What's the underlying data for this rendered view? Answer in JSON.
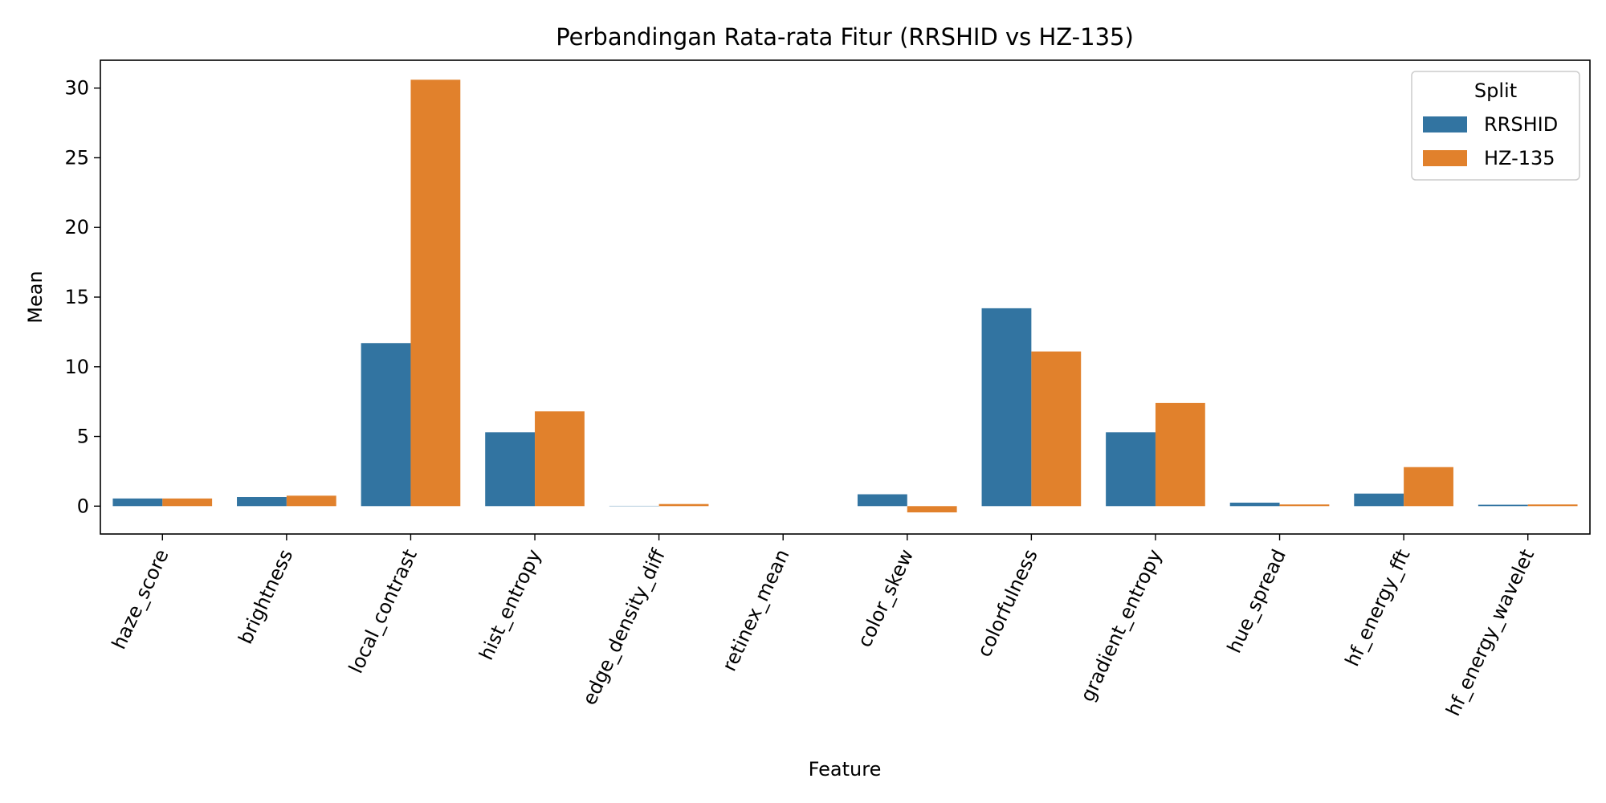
{
  "chart_data": {
    "type": "bar",
    "title": "Perbandingan Rata-rata Fitur (RRSHID vs HZ-135)",
    "xlabel": "Feature",
    "ylabel": "Mean",
    "ylim": [
      -2,
      32
    ],
    "yticks": [
      0,
      5,
      10,
      15,
      20,
      25,
      30
    ],
    "grid": false,
    "legend": {
      "title": "Split",
      "placement": "top-right"
    },
    "categories": [
      "haze_score",
      "brightness",
      "local_contrast",
      "hist_entropy",
      "edge_density_diff",
      "retinex_mean",
      "color_skew",
      "colorfulness",
      "gradient_entropy",
      "hue_spread",
      "hf_energy_fft",
      "hf_energy_wavelet"
    ],
    "series": [
      {
        "name": "RRSHID",
        "color": "#3274a1",
        "values": [
          0.55,
          0.65,
          11.7,
          5.3,
          0.02,
          0.0,
          0.85,
          14.2,
          5.3,
          0.25,
          0.9,
          0.1
        ]
      },
      {
        "name": "HZ-135",
        "color": "#e1812c",
        "values": [
          0.55,
          0.75,
          30.6,
          6.8,
          0.15,
          0.0,
          -0.45,
          11.1,
          7.4,
          0.12,
          2.8,
          0.12
        ]
      }
    ]
  }
}
